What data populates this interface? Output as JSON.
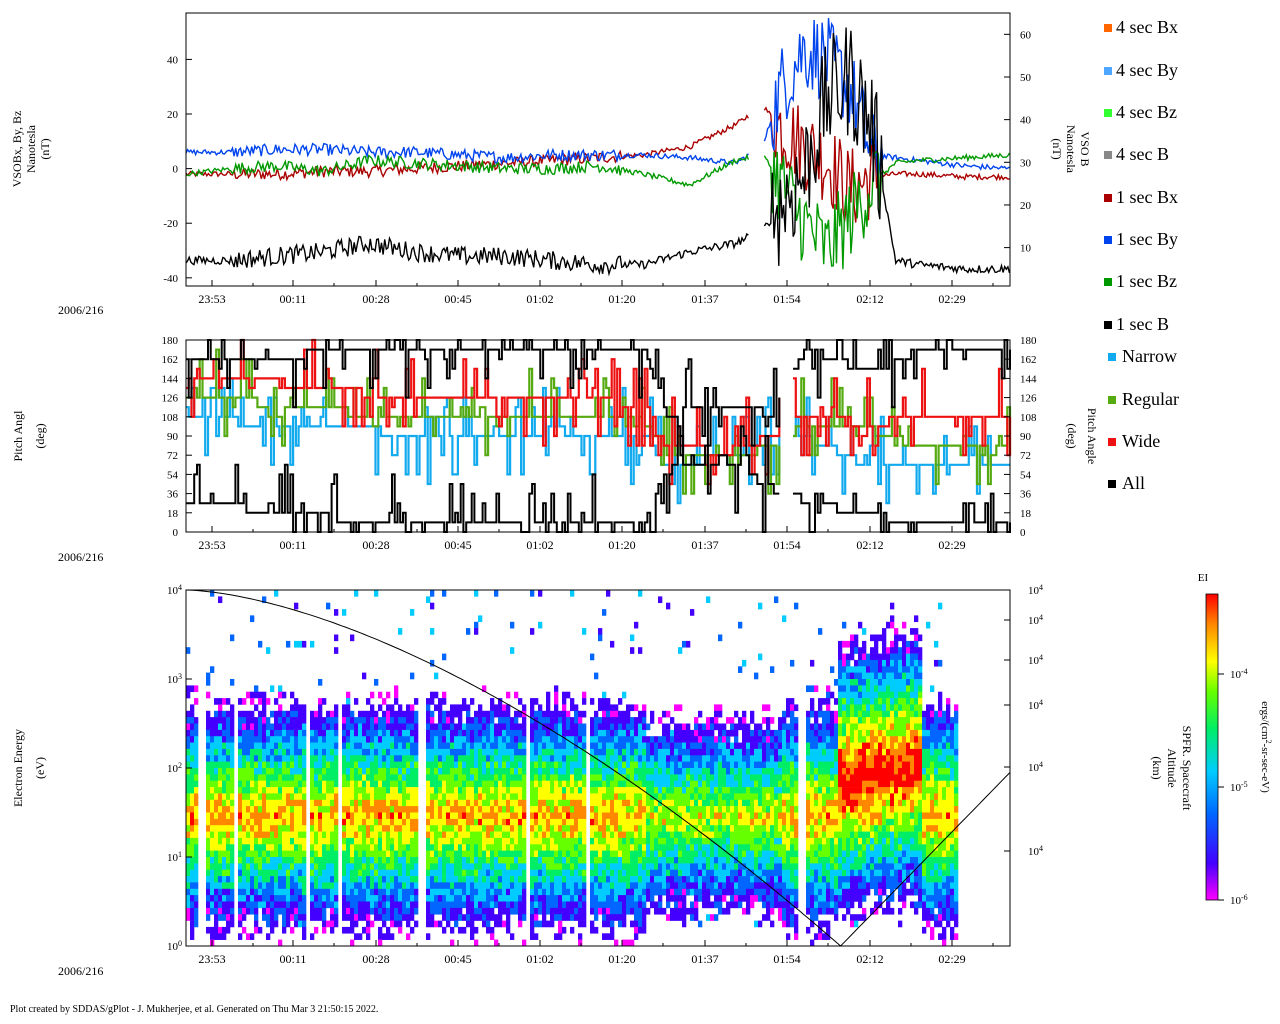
{
  "footer": "Plot created by SDDAS/gPlot - J. Mukherjee, et al.  Generated on Thu Mar 3 21:50:15 2022.",
  "date_label": "2006/216",
  "time_ticks": [
    "23:53",
    "00:11",
    "00:28",
    "00:45",
    "01:02",
    "01:20",
    "01:37",
    "01:54",
    "02:12",
    "02:29"
  ],
  "legend": {
    "mag": [
      {
        "label": "4 sec Bx",
        "color": "#ff6600"
      },
      {
        "label": "4 sec By",
        "color": "#4da6ff"
      },
      {
        "label": "4 sec Bz",
        "color": "#33ff33"
      },
      {
        "label": "4 sec B",
        "color": "#888888"
      },
      {
        "label": "1 sec Bx",
        "color": "#aa0000"
      },
      {
        "label": "1 sec By",
        "color": "#0044ee"
      },
      {
        "label": "1 sec Bz",
        "color": "#009900"
      },
      {
        "label": "1 sec B",
        "color": "#000000"
      }
    ],
    "pitch": [
      {
        "label": "Narrow",
        "color": "#11aaee"
      },
      {
        "label": "Regular",
        "color": "#55aa11"
      },
      {
        "label": "Wide",
        "color": "#ee1111"
      },
      {
        "label": "All",
        "color": "#000000"
      }
    ]
  },
  "chart_data": [
    {
      "type": "line",
      "panel": "magnetic field",
      "ylabel_lines": [
        "VSOBx, By, Bz",
        "Nanotesla",
        "(nT)"
      ],
      "ylabel_right_lines": [
        "VSO B",
        "Nanotesla",
        "(nT)"
      ],
      "left_ticks": [
        "40",
        "20",
        "0",
        "-20",
        "-40"
      ],
      "right_ticks": [
        "60",
        "50",
        "40",
        "30",
        "20",
        "10"
      ],
      "ylim": [
        -43,
        57
      ],
      "ylim_right": [
        1,
        65
      ],
      "x_minutes": [
        0,
        10,
        20,
        30,
        40,
        50,
        60,
        70,
        80,
        90,
        100,
        110,
        120,
        126,
        130,
        135,
        140,
        145,
        150,
        155,
        160,
        170,
        180
      ],
      "series": [
        {
          "name": "1 sec Bx",
          "color": "#aa0000",
          "axis": "left",
          "values": [
            -2,
            -2,
            -2,
            -1,
            -1,
            0,
            1,
            2,
            3,
            4,
            5,
            8,
            16,
            23,
            15,
            8,
            3,
            -8,
            -3,
            -2,
            -2,
            -3,
            -3
          ]
        },
        {
          "name": "1 sec By",
          "color": "#0044ee",
          "axis": "left",
          "values": [
            6,
            6,
            7,
            7,
            6,
            6,
            5,
            4,
            5,
            5,
            5,
            4,
            2,
            8,
            30,
            44,
            40,
            30,
            5,
            4,
            3,
            1,
            0
          ]
        },
        {
          "name": "1 sec Bz",
          "color": "#009900",
          "axis": "left",
          "values": [
            -2,
            0,
            1,
            -1,
            3,
            2,
            1,
            0,
            0,
            1,
            -2,
            -6,
            3,
            5,
            -5,
            -20,
            -30,
            -18,
            -5,
            2,
            3,
            4,
            5
          ]
        },
        {
          "name": "1 sec B",
          "color": "#000000",
          "axis": "right",
          "values": [
            7,
            7,
            8,
            9,
            11,
            9,
            8,
            8,
            7,
            6,
            6,
            9,
            11,
            14,
            20,
            27,
            45,
            50,
            38,
            7,
            6,
            5,
            5
          ]
        }
      ]
    },
    {
      "type": "line",
      "panel": "pitch angle",
      "ylabel_lines": [
        "Pitch Angl",
        "(deg)"
      ],
      "ylabel_right_lines": [
        "Pitch Angle",
        "(deg)"
      ],
      "ticks": [
        "180",
        "162",
        "144",
        "126",
        "108",
        "90",
        "72",
        "54",
        "36",
        "18",
        "0"
      ],
      "ylim": [
        0,
        180
      ],
      "series_names": [
        "Narrow",
        "Regular",
        "Wide",
        "All"
      ]
    },
    {
      "type": "heatmap",
      "panel": "electron spectrogram",
      "ylabel_lines": [
        "Electron Energy",
        "(eV)"
      ],
      "ylabel_right_lines": [
        "SPFR. Spacecraft",
        "Altitude",
        "(km)"
      ],
      "yticks": [
        {
          "base": "10",
          "exp": "4"
        },
        {
          "base": "10",
          "exp": "3"
        },
        {
          "base": "10",
          "exp": "2"
        },
        {
          "base": "10",
          "exp": "1"
        },
        {
          "base": "10",
          "exp": "0"
        }
      ],
      "right_ticks": [
        {
          "base": "10",
          "exp": "4"
        },
        {
          "base": "10",
          "exp": "4"
        },
        {
          "base": "10",
          "exp": "4"
        },
        {
          "base": "10",
          "exp": "4"
        },
        {
          "base": "10",
          "exp": "4"
        },
        {
          "base": "10",
          "exp": "4"
        }
      ],
      "ylim_log": [
        0,
        4
      ],
      "colorbar": {
        "title": "EI",
        "label_parts": [
          "ergs/(cm",
          "2",
          "-sr-sec-eV)"
        ],
        "ticks": [
          {
            "base": "10",
            "exp": "-4"
          },
          {
            "base": "10",
            "exp": "-5"
          },
          {
            "base": "10",
            "exp": "-6"
          }
        ]
      }
    }
  ]
}
